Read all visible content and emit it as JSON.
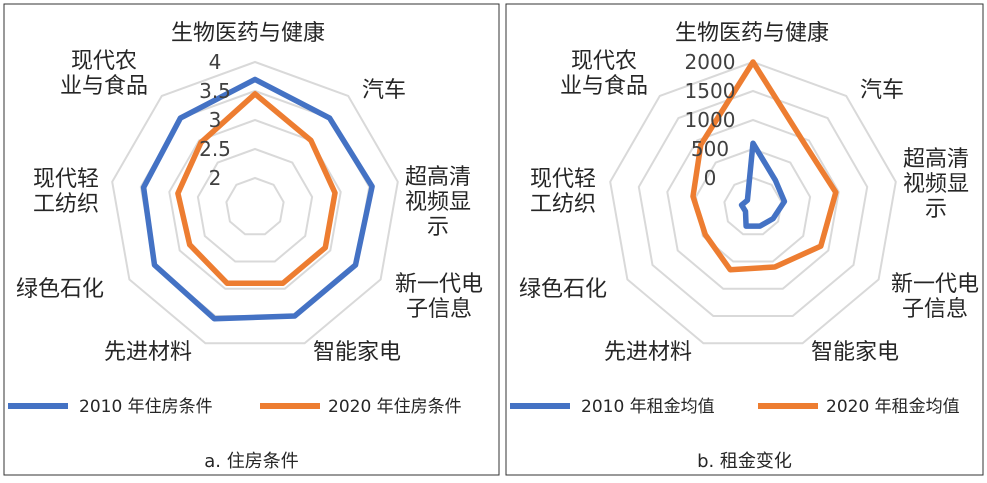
{
  "categories": [
    "生物医药与健康",
    "汽车",
    "超高清视频显示",
    "新一代电子信息",
    "智能家电",
    "先进材料",
    "绿色石化",
    "现代轻工纺织",
    "现代农业与食品"
  ],
  "chart_data": [
    {
      "type": "radar",
      "caption": "a. 住房条件",
      "categories": [
        "生物医药与健康",
        "汽车",
        "超高清视频显示",
        "新一代电子信息",
        "智能家电",
        "先进材料",
        "绿色石化",
        "现代轻工纺织",
        "现代农业与食品"
      ],
      "category_label_lines": [
        [
          "生物医药与健康"
        ],
        [
          "汽车"
        ],
        [
          "超高清",
          "视频显",
          "示"
        ],
        [
          "新一代电",
          "子信息"
        ],
        [
          "智能家电"
        ],
        [
          "先进材料"
        ],
        [
          "绿色石化"
        ],
        [
          "现代轻",
          "工纺织"
        ],
        [
          "现代农",
          "业与食品"
        ]
      ],
      "rlim": [
        1.5,
        4
      ],
      "ticks": [
        2,
        2.5,
        3,
        3.5,
        4
      ],
      "tick_labels": [
        "2",
        "2.5",
        "3",
        "3.5",
        "4"
      ],
      "grid": true,
      "legend_position": "bottom",
      "series": [
        {
          "name": "2010 年住房条件",
          "color": "#4472C4",
          "values": [
            3.7,
            3.5,
            3.55,
            3.5,
            3.5,
            3.55,
            3.5,
            3.45,
            3.5
          ]
        },
        {
          "name": "2020 年住房条件",
          "color": "#ED7D31",
          "values": [
            3.45,
            3.0,
            2.9,
            2.9,
            2.9,
            2.9,
            2.8,
            2.85,
            2.95
          ]
        }
      ]
    },
    {
      "type": "radar",
      "caption": "b. 租金变化",
      "categories": [
        "生物医药与健康",
        "汽车",
        "超高清视频显示",
        "新一代电子信息",
        "智能家电",
        "先进材料",
        "绿色石化",
        "现代轻工纺织",
        "现代农业与食品"
      ],
      "category_label_lines": [
        [
          "生物医药与健康"
        ],
        [
          "汽车"
        ],
        [
          "超高清",
          "视频显",
          "示"
        ],
        [
          "新一代电",
          "子信息"
        ],
        [
          "智能家电"
        ],
        [
          "先进材料"
        ],
        [
          "绿色石化"
        ],
        [
          "现代轻",
          "工纺织"
        ],
        [
          "现代农",
          "业与食品"
        ]
      ],
      "rlim": [
        -500,
        2000
      ],
      "ticks": [
        0,
        500,
        1000,
        1500,
        2000
      ],
      "tick_labels": [
        "0",
        "500",
        "1000",
        "1500",
        "2000"
      ],
      "grid": true,
      "legend_position": "bottom",
      "series": [
        {
          "name": "2010 年租金均值",
          "color": "#4472C4",
          "values": [
            600,
            100,
            50,
            -100,
            -150,
            -150,
            -350,
            -300,
            -350
          ]
        },
        {
          "name": "2020 年租金均值",
          "color": "#ED7D31",
          "values": [
            2000,
            900,
            950,
            850,
            600,
            650,
            450,
            550,
            900
          ]
        }
      ]
    }
  ]
}
